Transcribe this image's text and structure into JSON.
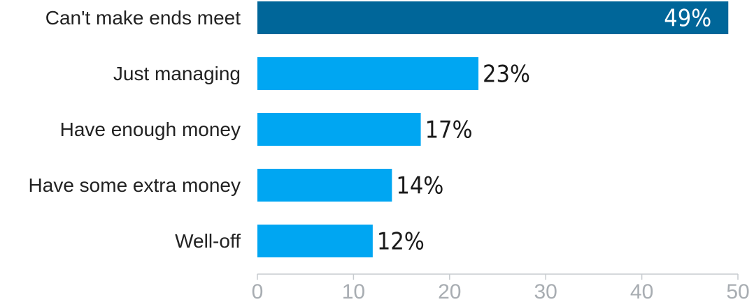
{
  "chart_data": {
    "type": "bar",
    "orientation": "horizontal",
    "categories": [
      "Can't make ends meet",
      "Just managing",
      "Have enough money",
      "Have some extra money",
      "Well-off"
    ],
    "values": [
      49,
      23,
      17,
      14,
      12
    ],
    "value_labels": [
      "49%",
      "23%",
      "17%",
      "14%",
      "12%"
    ],
    "highlight_index": 0,
    "xlim": [
      0,
      50
    ],
    "xticks": [
      0,
      10,
      20,
      30,
      40,
      50
    ],
    "xtick_labels": [
      "0",
      "10",
      "20",
      "30",
      "40",
      "50"
    ],
    "grid": false,
    "colors": {
      "bar": "#00a6f2",
      "highlight_bar": "#006699",
      "tick_text": "#a8adb2",
      "axis": "#c7cbcf"
    }
  }
}
